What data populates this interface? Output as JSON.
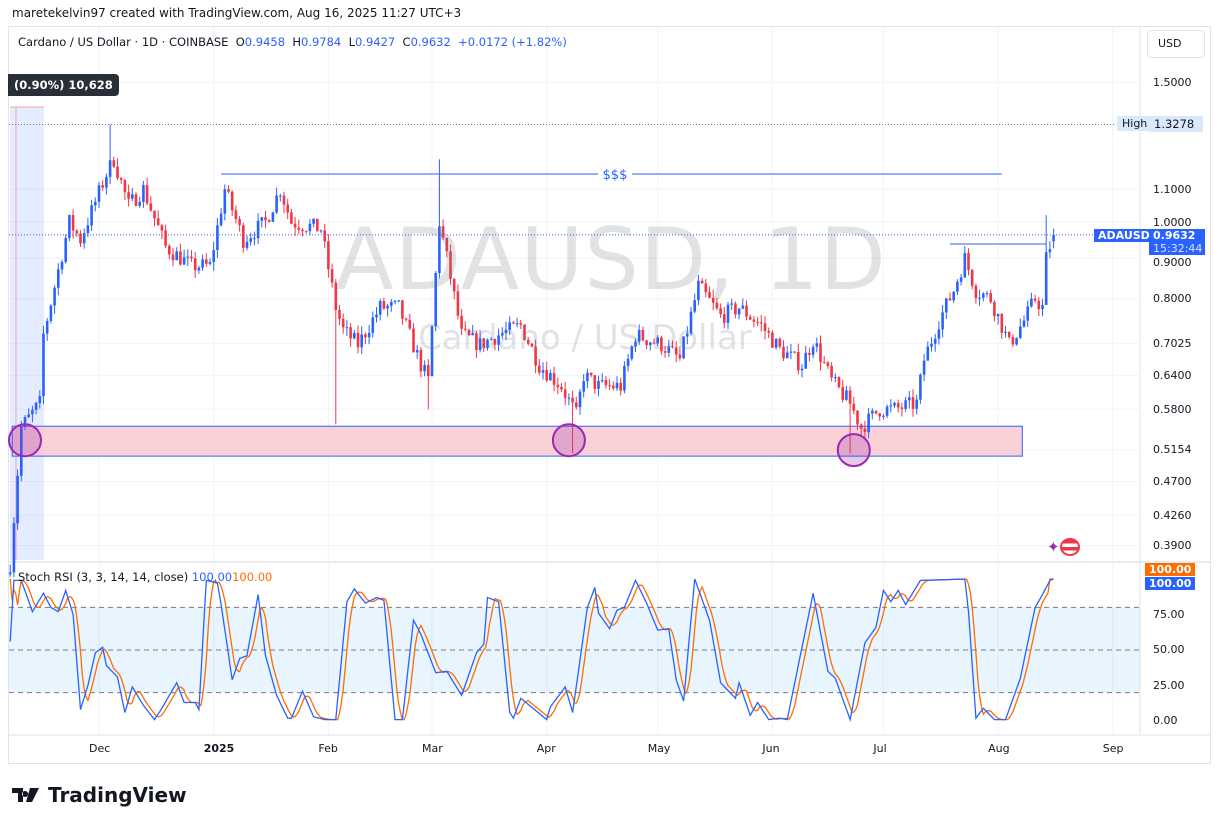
{
  "credit": "maretekelvin97 created with TradingView.com, Aug 16, 2025 11:27 UTC+3",
  "symbol_legend": {
    "title": "Cardano / US Dollar · 1D · COINBASE",
    "o_label": "O",
    "o": "0.9458",
    "h_label": "H",
    "h": "0.9784",
    "l_label": "L",
    "l": "0.9427",
    "c_label": "C",
    "c": "0.9632",
    "change": "+0.0172 (+1.82%)"
  },
  "currency": "USD",
  "measure_label": "(0.90%) 10,628",
  "watermark": {
    "symbol": "ADAUSD, 1D",
    "name": "Cardano / US Dollar"
  },
  "annotation": {
    "text": "$$$",
    "level": 1.15
  },
  "high_tag": {
    "label": "High",
    "value": "1.3278"
  },
  "price_tag": {
    "symbol": "ADAUSD",
    "value": "0.9632",
    "countdown": "15:32:44"
  },
  "rsi_legend": {
    "title": "Stoch RSI (3, 3, 14, 14, close)",
    "k": "100.00",
    "d": "100.00"
  },
  "brand": "TradingView",
  "colors": {
    "up": "#2962ff",
    "down": "#f23645",
    "k": "#2962ff",
    "d": "#ff6d00",
    "zone": "#f8c9cf",
    "circle": "#9c27b0"
  },
  "chart_data": {
    "type": "candlestick",
    "title": "Cardano / US Dollar · 1D · COINBASE",
    "scale": "log",
    "x_unit": "days since 2024-12-01",
    "x_ticks": [
      "Dec",
      "2025",
      "Feb",
      "Mar",
      "Apr",
      "May",
      "Jun",
      "Jul",
      "Aug",
      "Sep"
    ],
    "x_tick_days": [
      0,
      31,
      62,
      90,
      121,
      151,
      182,
      212,
      243,
      274
    ],
    "y_ticks": [
      "1.5000",
      "1.1000",
      "1.0000",
      "0.9000",
      "0.8000",
      "0.7025",
      "0.6400",
      "0.5800",
      "0.5154",
      "0.4700",
      "0.4260",
      "0.3900"
    ],
    "close_anchors": [
      [
        -24,
        0.37
      ],
      [
        -21,
        0.55
      ],
      [
        -16,
        0.59
      ],
      [
        -15,
        0.72
      ],
      [
        -8,
        1.0
      ],
      [
        -5,
        0.95
      ],
      [
        2,
        1.15
      ],
      [
        4,
        1.2
      ],
      [
        8,
        1.05
      ],
      [
        12,
        1.1
      ],
      [
        18,
        0.93
      ],
      [
        25,
        0.88
      ],
      [
        30,
        0.88
      ],
      [
        34,
        1.1
      ],
      [
        39,
        0.95
      ],
      [
        45,
        1.0
      ],
      [
        49,
        1.1
      ],
      [
        52,
        1.0
      ],
      [
        60,
        0.98
      ],
      [
        64,
        0.78
      ],
      [
        66,
        0.73
      ],
      [
        70,
        0.7
      ],
      [
        76,
        0.78
      ],
      [
        81,
        0.78
      ],
      [
        87,
        0.66
      ],
      [
        89,
        0.63
      ],
      [
        92,
        1.0
      ],
      [
        94,
        0.9
      ],
      [
        98,
        0.72
      ],
      [
        103,
        0.7
      ],
      [
        108,
        0.72
      ],
      [
        114,
        0.74
      ],
      [
        119,
        0.66
      ],
      [
        125,
        0.62
      ],
      [
        129,
        0.57
      ],
      [
        131,
        0.64
      ],
      [
        135,
        0.62
      ],
      [
        141,
        0.62
      ],
      [
        145,
        0.72
      ],
      [
        152,
        0.7
      ],
      [
        157,
        0.67
      ],
      [
        162,
        0.83
      ],
      [
        168,
        0.76
      ],
      [
        173,
        0.78
      ],
      [
        179,
        0.74
      ],
      [
        184,
        0.69
      ],
      [
        190,
        0.66
      ],
      [
        193,
        0.71
      ],
      [
        198,
        0.63
      ],
      [
        203,
        0.59
      ],
      [
        206,
        0.55
      ],
      [
        211,
        0.58
      ],
      [
        215,
        0.58
      ],
      [
        221,
        0.59
      ],
      [
        223,
        0.67
      ],
      [
        227,
        0.75
      ],
      [
        231,
        0.82
      ],
      [
        234,
        0.9
      ],
      [
        237,
        0.82
      ],
      [
        241,
        0.8
      ],
      [
        244,
        0.74
      ],
      [
        246,
        0.7
      ],
      [
        250,
        0.75
      ],
      [
        253,
        0.8
      ],
      [
        255,
        0.78
      ],
      [
        256,
        0.9
      ],
      [
        258,
        0.9632
      ]
    ],
    "wick_extremes": [
      [
        3,
        "high",
        1.3278
      ],
      [
        92,
        "high",
        1.2
      ],
      [
        64,
        "low",
        0.555
      ],
      [
        89,
        "low",
        0.58
      ],
      [
        128,
        "low",
        0.51
      ],
      [
        203,
        "low",
        0.51
      ],
      [
        256,
        "high",
        1.02
      ]
    ],
    "zone": {
      "from": 0.506,
      "to": 0.552,
      "start_day": -24,
      "end_day": 249
    },
    "circles": [
      [
        -20,
        0.53
      ],
      [
        127,
        0.53
      ],
      [
        204,
        0.515
      ]
    ],
    "level_lines": [
      {
        "price": 1.15,
        "start_day": 33,
        "end_day": 244
      },
      {
        "price": 0.938,
        "start_day": 230,
        "end_day": 256
      }
    ],
    "stoch_rsi": {
      "y_ticks": [
        "75.00",
        "50.00",
        "25.00",
        "0.00"
      ],
      "bands": [
        80,
        50,
        20
      ],
      "k_anchors": [
        [
          -24,
          56
        ],
        [
          -23,
          99
        ],
        [
          -21,
          99
        ],
        [
          -18,
          77
        ],
        [
          -15,
          90
        ],
        [
          -13,
          80
        ],
        [
          -11,
          77
        ],
        [
          -9,
          92
        ],
        [
          -7,
          75
        ],
        [
          -5,
          8
        ],
        [
          -3,
          25
        ],
        [
          -1,
          48
        ],
        [
          1,
          52
        ],
        [
          2,
          39
        ],
        [
          5,
          31
        ],
        [
          7,
          6
        ],
        [
          9,
          24
        ],
        [
          12,
          11
        ],
        [
          15,
          1
        ],
        [
          17,
          9
        ],
        [
          21,
          27
        ],
        [
          23,
          13
        ],
        [
          26,
          13
        ],
        [
          27,
          8
        ],
        [
          29,
          99
        ],
        [
          32,
          97
        ],
        [
          33,
          82
        ],
        [
          36,
          29
        ],
        [
          38,
          44
        ],
        [
          40,
          46
        ],
        [
          43,
          89
        ],
        [
          45,
          46
        ],
        [
          48,
          18
        ],
        [
          51,
          2
        ],
        [
          52,
          2
        ],
        [
          55,
          21
        ],
        [
          58,
          3
        ],
        [
          61,
          1
        ],
        [
          64,
          1
        ],
        [
          67,
          84
        ],
        [
          69,
          93
        ],
        [
          72,
          83
        ],
        [
          75,
          87
        ],
        [
          77,
          85
        ],
        [
          80,
          1
        ],
        [
          82,
          1
        ],
        [
          85,
          71
        ],
        [
          87,
          61
        ],
        [
          91,
          34
        ],
        [
          94,
          35
        ],
        [
          98,
          18
        ],
        [
          102,
          48
        ],
        [
          104,
          54
        ],
        [
          105,
          87
        ],
        [
          108,
          84
        ],
        [
          111,
          6
        ],
        [
          112,
          2
        ],
        [
          114,
          16
        ],
        [
          121,
          1
        ],
        [
          122,
          10
        ],
        [
          126,
          24
        ],
        [
          128,
          6
        ],
        [
          132,
          80
        ],
        [
          134,
          94
        ],
        [
          135,
          76
        ],
        [
          138,
          65
        ],
        [
          140,
          78
        ],
        [
          142,
          80
        ],
        [
          145,
          99
        ],
        [
          148,
          83
        ],
        [
          151,
          64
        ],
        [
          154,
          65
        ],
        [
          156,
          29
        ],
        [
          158,
          14
        ],
        [
          161,
          100
        ],
        [
          165,
          71
        ],
        [
          168,
          27
        ],
        [
          172,
          16
        ],
        [
          173,
          27
        ],
        [
          176,
          4
        ],
        [
          178,
          13
        ],
        [
          181,
          1
        ],
        [
          184,
          2
        ],
        [
          186,
          1
        ],
        [
          193,
          90
        ],
        [
          197,
          35
        ],
        [
          199,
          30
        ],
        [
          203,
          1
        ],
        [
          207,
          55
        ],
        [
          210,
          66
        ],
        [
          212,
          92
        ],
        [
          214,
          84
        ],
        [
          216,
          92
        ],
        [
          218,
          82
        ],
        [
          222,
          99
        ],
        [
          234,
          100
        ],
        [
          235,
          77
        ],
        [
          237,
          2
        ],
        [
          239,
          9
        ],
        [
          242,
          1
        ],
        [
          245,
          1
        ],
        [
          249,
          30
        ],
        [
          253,
          80
        ],
        [
          255,
          89
        ],
        [
          257,
          99
        ],
        [
          258,
          100
        ]
      ],
      "k_last": 100.0,
      "d_last": 100.0
    }
  }
}
